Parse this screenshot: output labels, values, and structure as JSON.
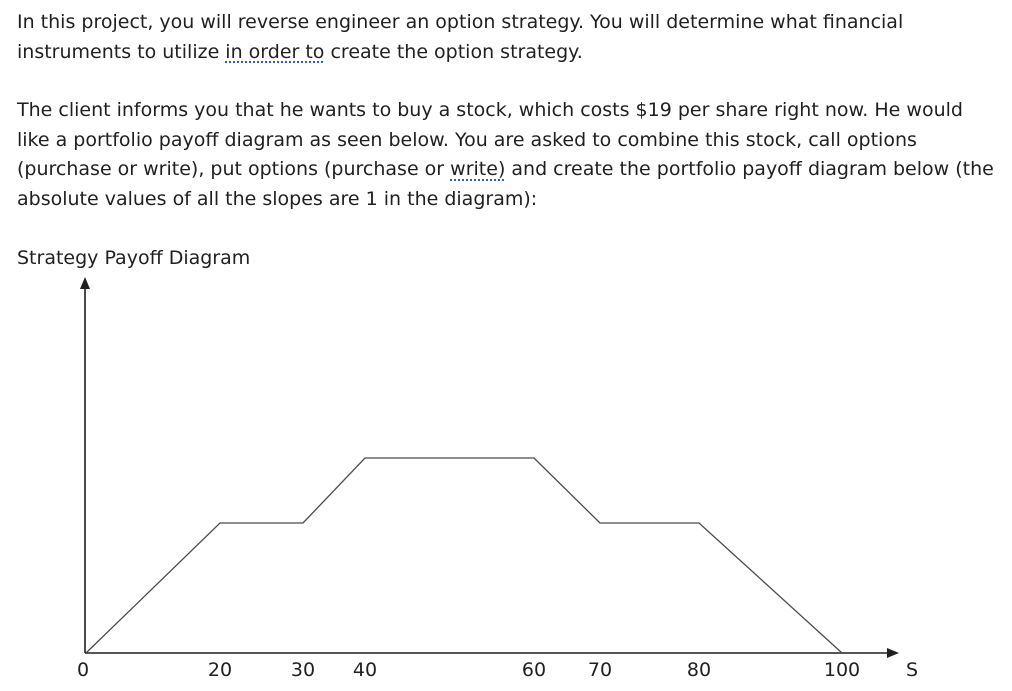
{
  "intro": {
    "p1_part1": "In this project, you will reverse engineer an option strategy. You will determine what financial instruments to utilize ",
    "p1_dotted": "in order to",
    "p1_part2": " create the option strategy.",
    "p2_part1": "The client informs you that he wants to buy a stock, which costs $19 per share right now. He would like a portfolio payoff diagram as seen below. You are asked to combine this stock, call options (purchase or write), put options (purchase or ",
    "p2_dotted": "write)",
    "p2_part2": " and create the portfolio payoff diagram below (the absolute values of all the slopes are 1 in the diagram):"
  },
  "diagram_title": "Strategy Payoff Diagram",
  "chart_data": {
    "type": "line",
    "title": "Strategy Payoff Diagram",
    "xlabel": "S",
    "ylabel": "",
    "x_ticks": [
      "0",
      "20",
      "30",
      "40",
      "60",
      "70",
      "80",
      "100"
    ],
    "points": [
      {
        "x": 0,
        "y": 0
      },
      {
        "x": 20,
        "y": 20
      },
      {
        "x": 30,
        "y": 20
      },
      {
        "x": 40,
        "y": 30
      },
      {
        "x": 60,
        "y": 30
      },
      {
        "x": 70,
        "y": 20
      },
      {
        "x": 80,
        "y": 20
      },
      {
        "x": 100,
        "y": 0
      }
    ],
    "slope_note": "absolute values of all the slopes are 1",
    "grid": false,
    "legend": "none"
  }
}
